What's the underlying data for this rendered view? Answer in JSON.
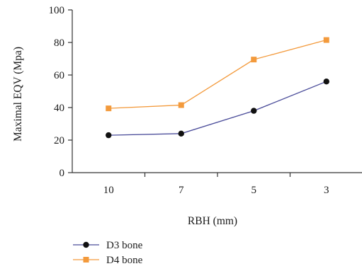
{
  "chart_data": {
    "type": "line",
    "categories": [
      "10",
      "7",
      "5",
      "3"
    ],
    "xlabel": "RBH (mm)",
    "ylabel": "Maximal EQV (Mpa)",
    "ylim": [
      0,
      100
    ],
    "yticks": [
      0,
      20,
      40,
      60,
      80,
      100
    ],
    "grid": false,
    "legend_position": "bottom-left",
    "series": [
      {
        "name": "D3 bone",
        "values": [
          23,
          24,
          38,
          56
        ],
        "color": "#4b4d9a",
        "marker_color": "#111111",
        "marker": "circle"
      },
      {
        "name": "D4 bone",
        "values": [
          39.5,
          41.5,
          69.5,
          81.5
        ],
        "color": "#f39a3c",
        "marker_color": "#f39a3c",
        "marker": "square"
      }
    ]
  }
}
